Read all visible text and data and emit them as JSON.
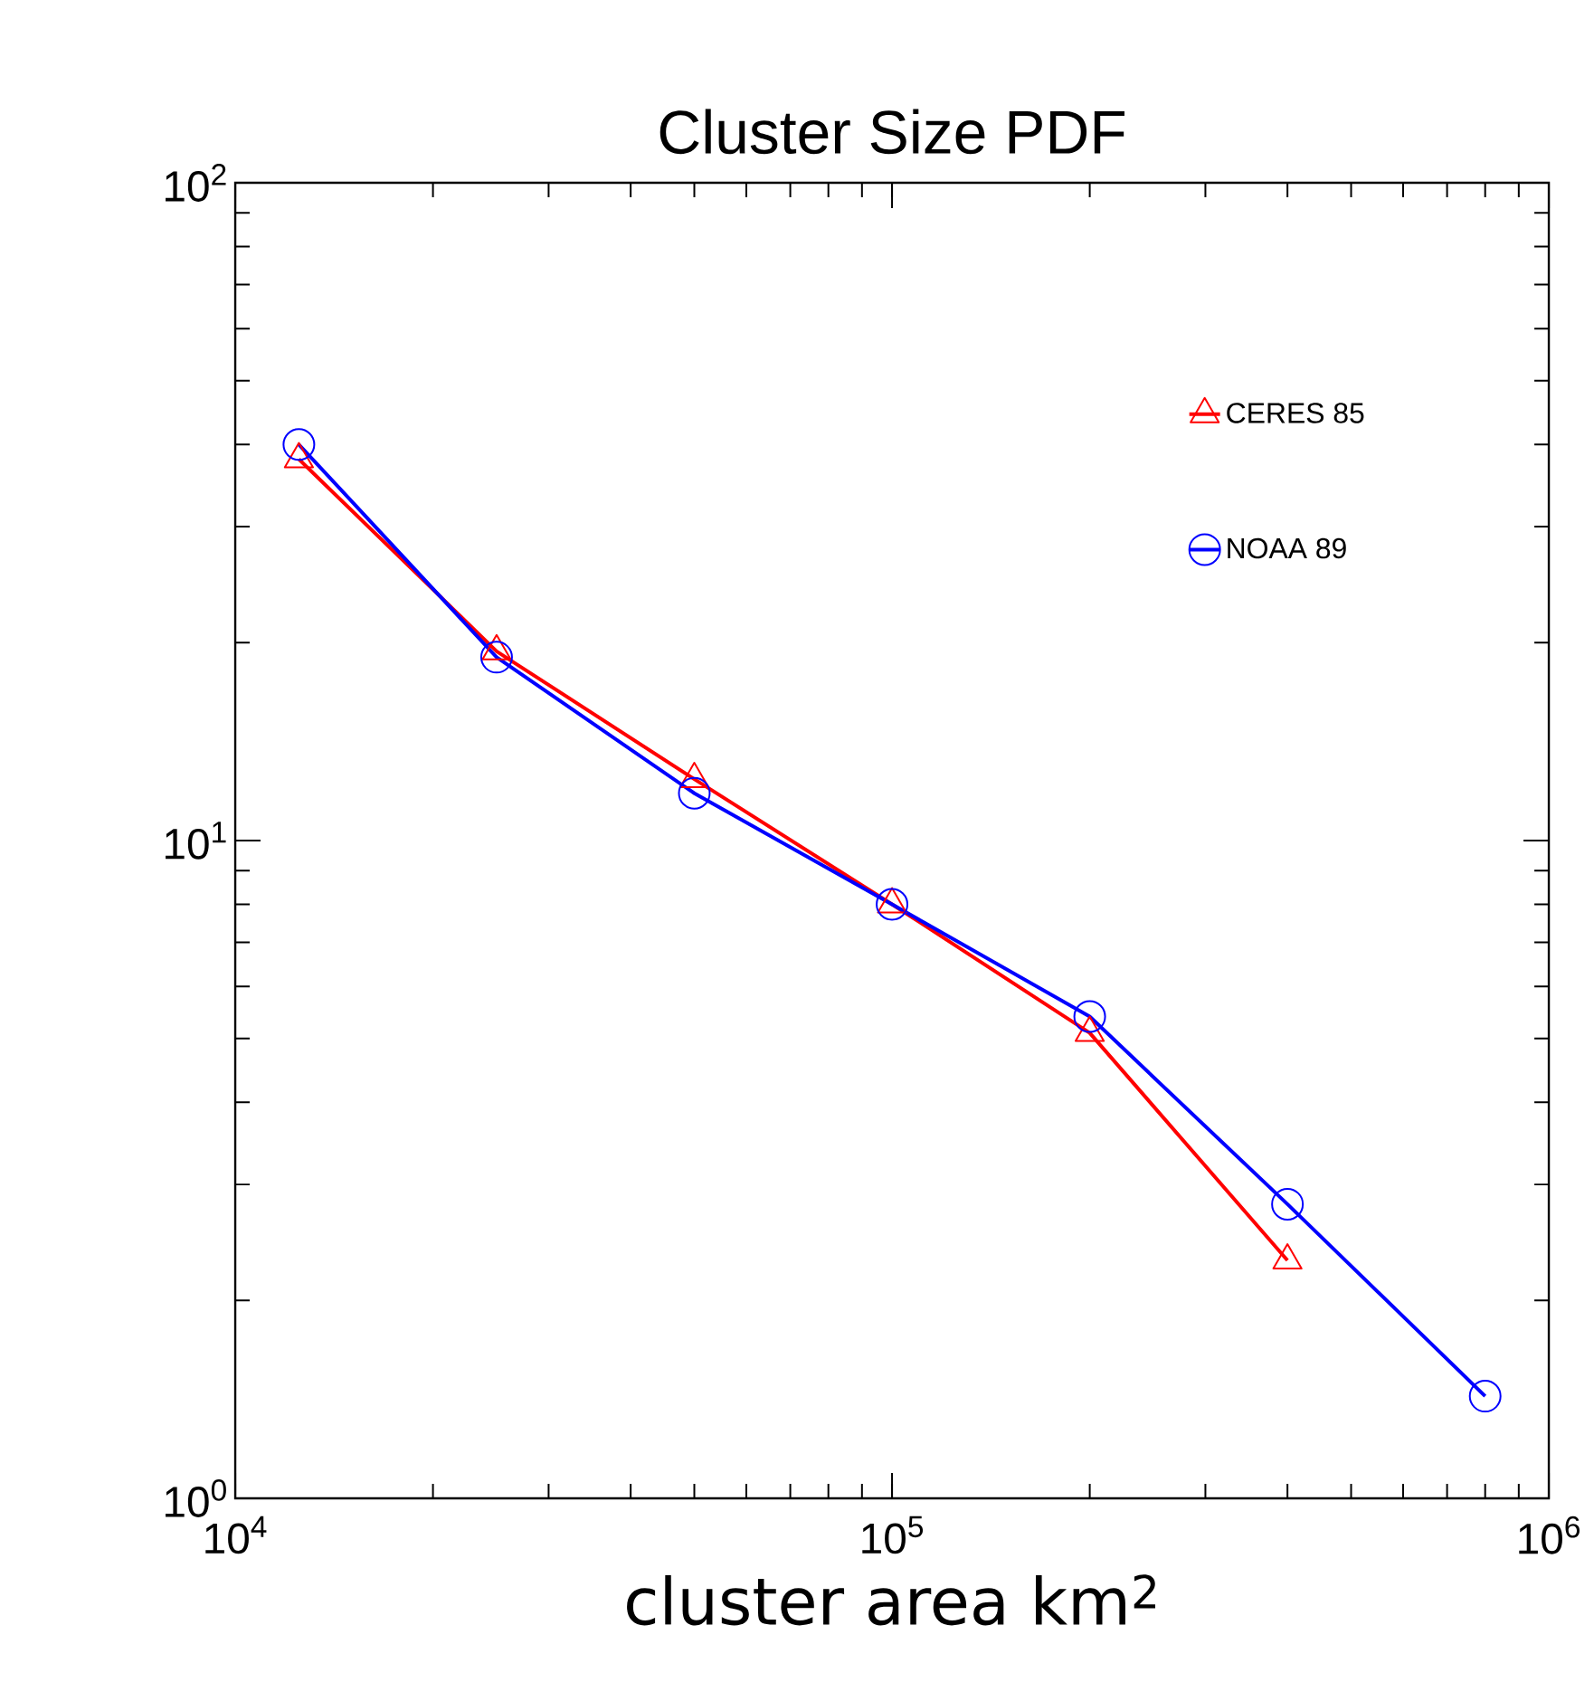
{
  "chart_data": {
    "type": "line",
    "title": "Cluster Size PDF",
    "xlabel": "cluster area km$^{2}$",
    "log": "xy",
    "x": [
      12500,
      25000,
      50000,
      100000,
      200000,
      400000,
      800000
    ],
    "series": [
      {
        "name": "CERES  85",
        "color": "#ff0000",
        "marker": "triangle",
        "values": [
          38,
          19.4,
          12.4,
          8.0,
          5.1,
          2.3,
          null
        ]
      },
      {
        "name": "NOAA  89",
        "color": "#0000ff",
        "marker": "circle",
        "values": [
          40,
          19.0,
          11.8,
          8.0,
          5.4,
          2.8,
          1.43
        ]
      }
    ],
    "xlim": [
      10000,
      1000000
    ],
    "ylim": [
      1,
      100
    ],
    "xticks": [
      {
        "value": 10000,
        "label": "10$^{4}$"
      },
      {
        "value": 100000,
        "label": "10$^{5}$"
      },
      {
        "value": 1000000,
        "label": "10$^{6}$"
      }
    ],
    "yticks": [
      {
        "value": 1,
        "label": "10$^{0}$"
      },
      {
        "value": 10,
        "label": "10$^{1}$"
      },
      {
        "value": 100,
        "label": "10$^{2}$"
      }
    ],
    "grid": false,
    "legend": "top right"
  }
}
